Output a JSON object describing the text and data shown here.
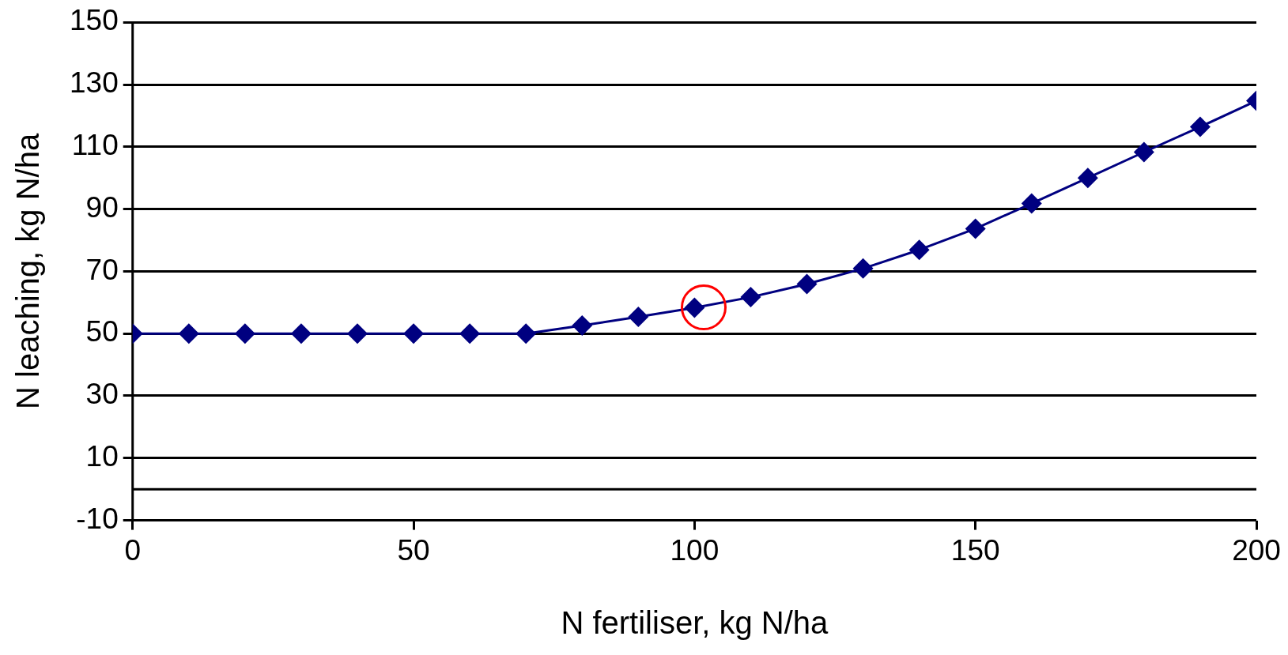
{
  "chart_data": {
    "type": "line",
    "xlabel": "N fertiliser, kg N/ha",
    "ylabel": "N leaching, kg N/ha",
    "x": [
      0,
      10,
      20,
      30,
      40,
      50,
      60,
      70,
      80,
      90,
      100,
      110,
      120,
      130,
      140,
      150,
      160,
      170,
      180,
      190,
      200
    ],
    "series": [
      {
        "color": "#000080",
        "values": [
          50,
          50,
          50,
          50,
          50,
          50,
          50,
          50,
          52.6,
          55.4,
          58.3,
          61.7,
          65.9,
          70.9,
          76.9,
          83.7,
          91.8,
          100,
          108.3,
          116.4,
          124.8
        ]
      }
    ],
    "xlim": [
      0,
      200
    ],
    "xticks": [
      0,
      50,
      100,
      150,
      200
    ],
    "ylim": [
      -10,
      150
    ],
    "yticks": [
      -10,
      10,
      30,
      50,
      70,
      90,
      110,
      130,
      150
    ],
    "ref_lines": [
      {
        "axis": "y",
        "value": 0,
        "color": "#000000"
      }
    ],
    "grid": "y",
    "legend": false,
    "marker": "diamond",
    "line_style": "solid"
  }
}
